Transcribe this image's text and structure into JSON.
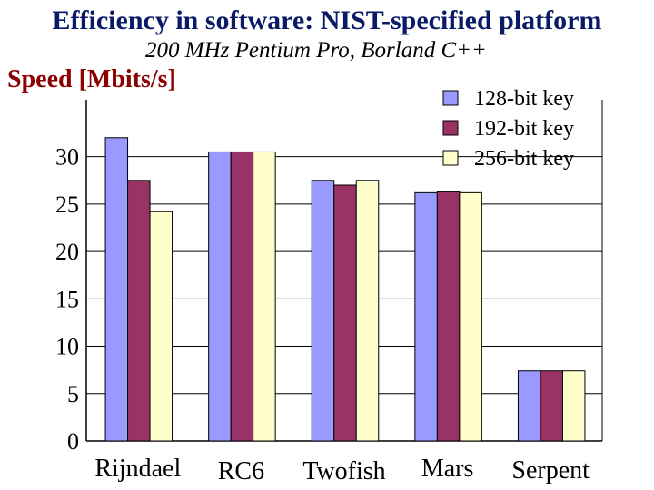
{
  "chart_data": {
    "type": "bar",
    "title": "Efficiency in software: NIST-specified platform",
    "subtitle": "200 MHz Pentium Pro, Borland C++",
    "ylabel": "Speed [Mbits/s]",
    "xlabel": "",
    "ylim": [
      0,
      36
    ],
    "yticks": [
      0,
      5,
      10,
      15,
      20,
      25,
      30
    ],
    "grid": true,
    "legend_position": "top-right",
    "categories": [
      "Rijndael",
      "RC6",
      "Twofish",
      "Mars",
      "Serpent"
    ],
    "series": [
      {
        "name": "128-bit key",
        "color": "#9999ff",
        "values": [
          32,
          30.5,
          27.5,
          26.2,
          7.4
        ]
      },
      {
        "name": "192-bit key",
        "color": "#993366",
        "values": [
          27.5,
          30.5,
          27,
          26.3,
          7.4
        ]
      },
      {
        "name": "256-bit key",
        "color": "#ffffcc",
        "values": [
          24.2,
          30.5,
          27.5,
          26.2,
          7.4
        ]
      }
    ]
  }
}
